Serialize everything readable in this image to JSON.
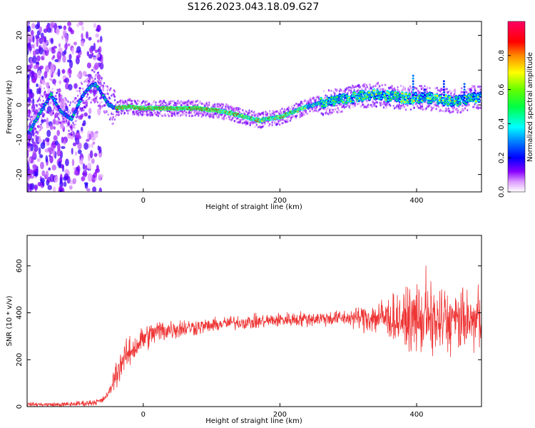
{
  "title": "S126.2023.043.18.09.G27",
  "chart_data": [
    {
      "type": "heatmap",
      "xlabel": "Height of straight line (km)",
      "ylabel": "Frequency (Hz)",
      "xlim": [
        -170,
        495
      ],
      "ylim": [
        -25,
        24
      ],
      "xticks": [
        0,
        200,
        400
      ],
      "yticks": [
        -20,
        -10,
        0,
        10,
        20
      ],
      "colorbar": {
        "label": "Normalized spectral amplitude",
        "range": [
          0,
          1
        ],
        "ticks": [
          0.0,
          0.2,
          0.4,
          0.6,
          0.8
        ]
      },
      "ridge": {
        "x": [
          -168,
          -150,
          -135,
          -120,
          -105,
          -90,
          -80,
          -70,
          -60,
          -50,
          -40,
          -20,
          0,
          40,
          80,
          100,
          120,
          140,
          160,
          170,
          180,
          200,
          220,
          240,
          260,
          280,
          300,
          320,
          340,
          360,
          380,
          400,
          420,
          440,
          460,
          480,
          495
        ],
        "freq": [
          -8,
          -2,
          3,
          -2,
          -4,
          2,
          5,
          6,
          3,
          0,
          -1,
          -0.5,
          -1,
          -1,
          -1,
          -1.5,
          -2,
          -3,
          -4,
          -4.5,
          -4,
          -3.5,
          -2,
          -0.5,
          0.5,
          1,
          2,
          2.5,
          3,
          2.5,
          2,
          2,
          2,
          1.5,
          1,
          2,
          2.5
        ]
      }
    },
    {
      "type": "line",
      "xlabel": "Height of straight line (km)",
      "ylabel": "SNR (10 * v/v)",
      "xlim": [
        -170,
        495
      ],
      "ylim": [
        0,
        730
      ],
      "xticks": [
        0,
        200,
        400
      ],
      "yticks": [
        0,
        200,
        400,
        600
      ],
      "series_color": "#ee3333",
      "trend": {
        "x": [
          -170,
          -120,
          -80,
          -60,
          -50,
          -40,
          -30,
          -20,
          -10,
          0,
          20,
          40,
          60,
          80,
          100,
          120,
          140,
          160,
          180,
          200,
          250,
          300,
          350,
          400,
          450,
          495
        ],
        "y": [
          10,
          8,
          15,
          25,
          60,
          140,
          200,
          230,
          260,
          290,
          320,
          330,
          335,
          340,
          345,
          355,
          360,
          360,
          365,
          370,
          375,
          378,
          380,
          370,
          360,
          360
        ]
      },
      "noise": {
        "x": [
          -170,
          -50,
          -40,
          0,
          100,
          300,
          330,
          380,
          420,
          495
        ],
        "amplitude": [
          8,
          15,
          70,
          60,
          30,
          35,
          70,
          120,
          160,
          120
        ]
      }
    }
  ]
}
